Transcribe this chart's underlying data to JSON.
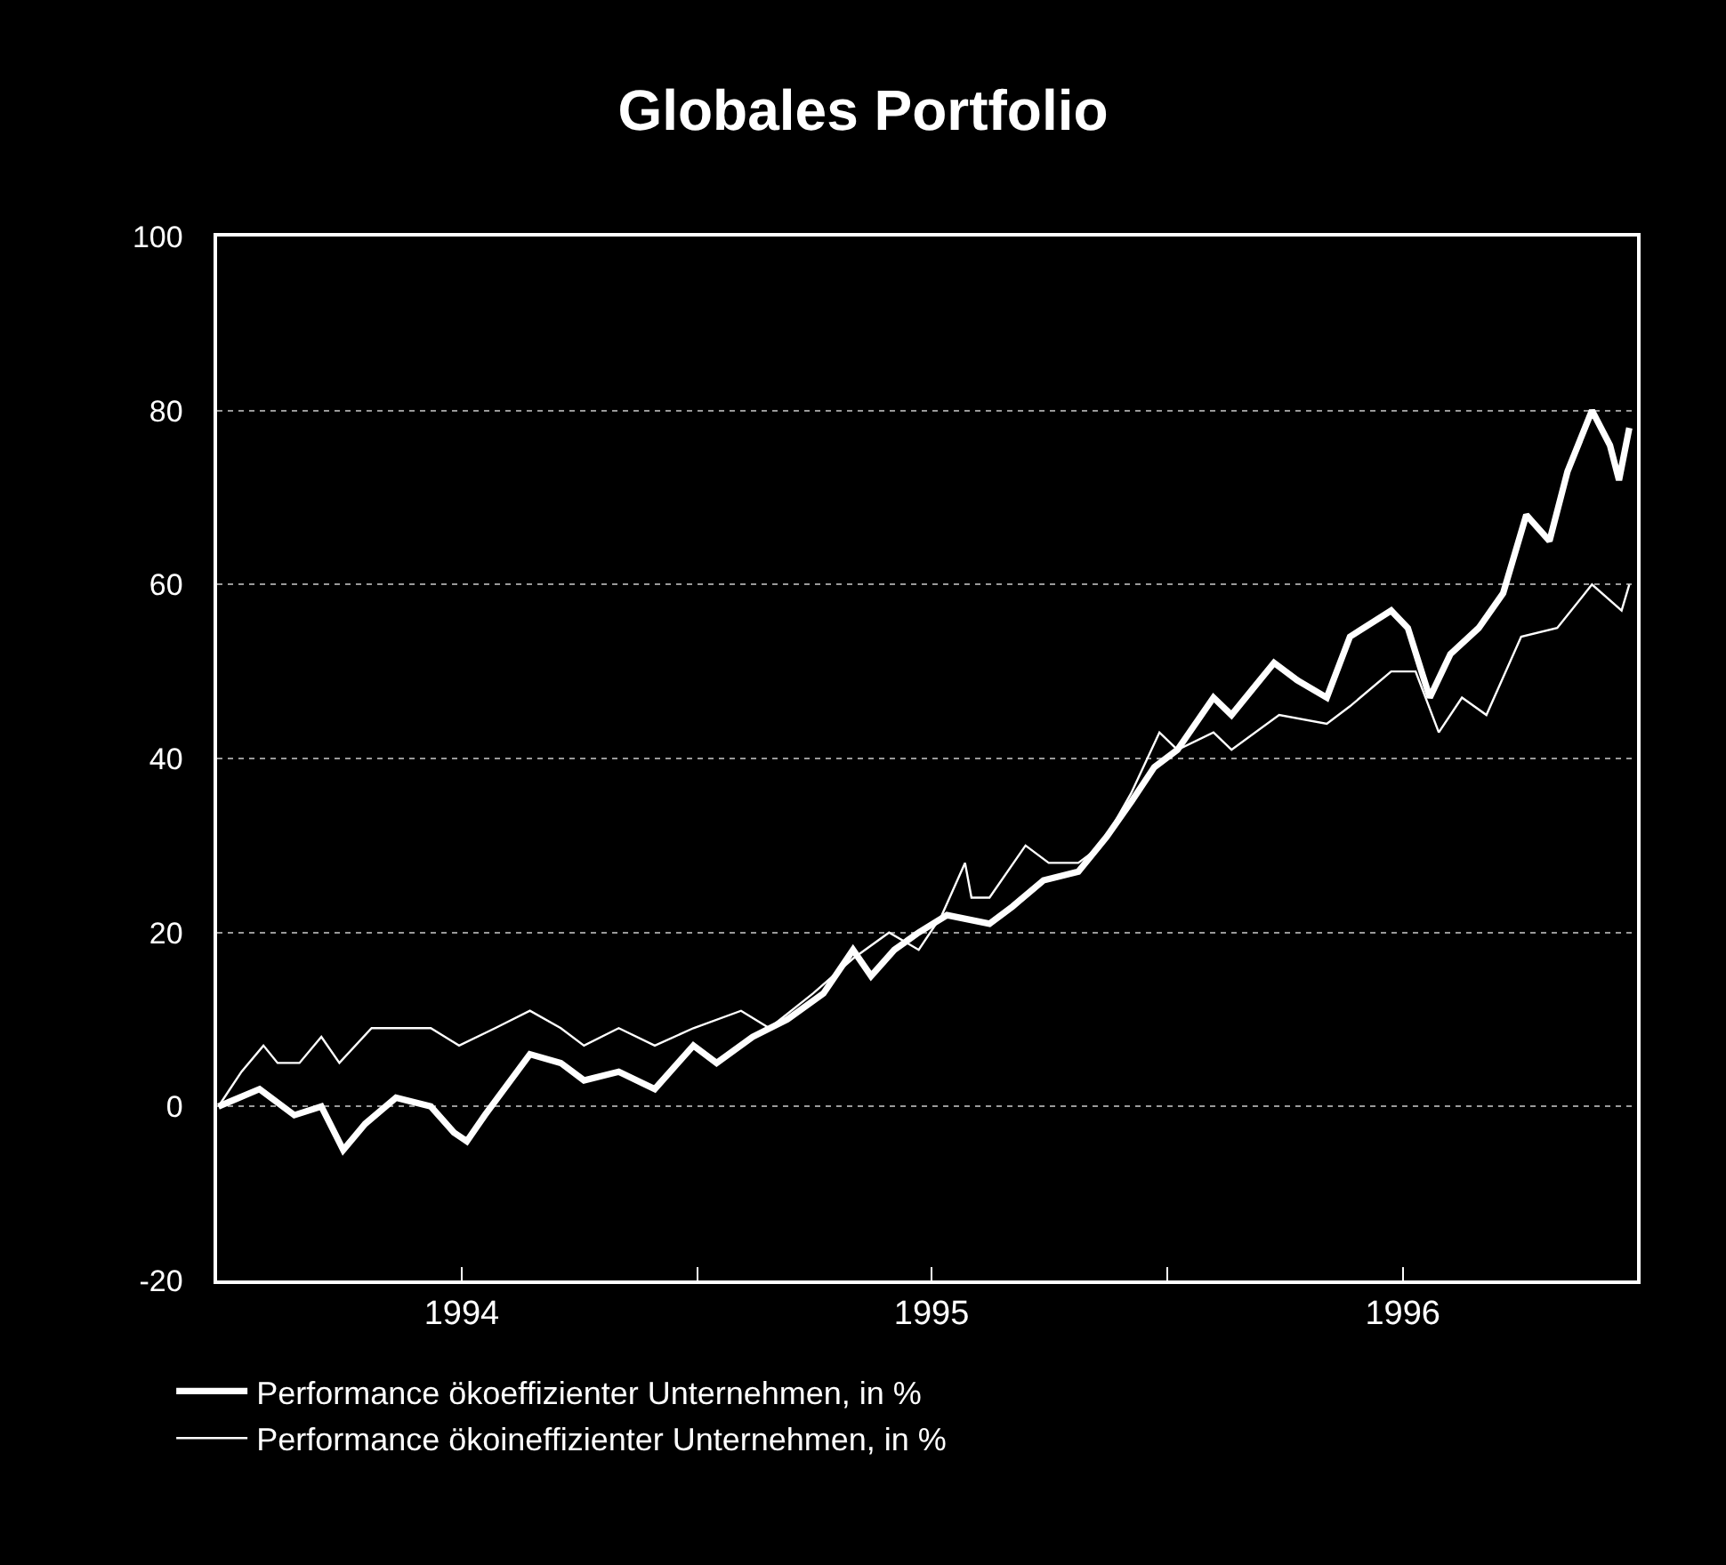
{
  "chart_data": {
    "type": "line",
    "title": "Globales Portfolio",
    "xlim": [
      "1993-12-24",
      "1996-12-31"
    ],
    "xticks": [
      {
        "value": "1994-07-02",
        "label": "1994"
      },
      {
        "value": "1995-01-01",
        "label": null
      },
      {
        "value": "1995-07-02",
        "label": "1995"
      },
      {
        "value": "1996-01-01",
        "label": null
      },
      {
        "value": "1996-07-02",
        "label": "1996"
      }
    ],
    "ylim": [
      -20,
      100
    ],
    "yticks": [
      -20,
      0,
      20,
      40,
      60,
      80,
      100
    ],
    "grid": "y",
    "legend": "bottom left",
    "line_style": "solid",
    "marker": "none",
    "series": [
      {
        "name": "Performance ökoeffizienter Unternehmen, in %",
        "color": "#ffffff",
        "x": [
          "1993-12-25",
          "1994-01-26",
          "1994-02-22",
          "1994-03-15",
          "1994-04-01",
          "1994-04-18",
          "1994-05-12",
          "1994-06-08",
          "1994-06-26",
          "1994-07-06",
          "1994-07-20",
          "1994-08-24",
          "1994-09-17",
          "1994-10-05",
          "1994-11-01",
          "1994-11-29",
          "1994-12-29",
          "1995-01-16",
          "1995-02-13",
          "1995-03-12",
          "1995-04-09",
          "1995-05-02",
          "1995-05-16",
          "1995-06-03",
          "1995-06-22",
          "1995-07-14",
          "1995-08-16",
          "1995-09-03",
          "1995-09-27",
          "1995-10-24",
          "1995-11-15",
          "1995-12-04",
          "1995-12-22",
          "1996-01-09",
          "1996-02-06",
          "1996-02-20",
          "1996-03-24",
          "1996-04-11",
          "1996-05-04",
          "1996-05-22",
          "1996-06-23",
          "1996-07-06",
          "1996-07-23",
          "1996-08-08",
          "1996-08-30",
          "1996-09-18",
          "1996-10-06",
          "1996-10-24",
          "1996-11-07",
          "1996-11-26",
          "1996-12-10",
          "1996-12-17",
          "1996-12-25"
        ],
        "values": [
          0,
          2,
          -1,
          0,
          -5,
          -2,
          1,
          0,
          -3,
          -4,
          -1,
          6,
          5,
          3,
          4,
          2,
          7,
          5,
          8,
          10,
          13,
          18,
          15,
          18,
          20,
          22,
          21,
          23,
          26,
          27,
          31,
          35,
          39,
          41,
          47,
          45,
          51,
          49,
          47,
          54,
          57,
          55,
          47,
          52,
          55,
          59,
          68,
          65,
          73,
          80,
          76,
          72,
          78
        ]
      },
      {
        "name": "Performance ökoineffizienter Unternehmen, in %",
        "color": "#ffffff",
        "x": [
          "1993-12-25",
          "1994-01-12",
          "1994-01-29",
          "1994-02-09",
          "1994-02-26",
          "1994-03-15",
          "1994-03-29",
          "1994-04-23",
          "1994-05-16",
          "1994-06-08",
          "1994-06-30",
          "1994-07-28",
          "1994-08-24",
          "1994-09-17",
          "1994-10-05",
          "1994-11-01",
          "1994-11-29",
          "1994-12-29",
          "1995-02-04",
          "1995-02-26",
          "1995-04-01",
          "1995-05-02",
          "1995-05-30",
          "1995-06-22",
          "1995-07-10",
          "1995-07-28",
          "1995-08-02",
          "1995-08-16",
          "1995-09-13",
          "1995-10-01",
          "1995-10-24",
          "1995-11-11",
          "1995-12-04",
          "1995-12-26",
          "1996-01-09",
          "1996-02-06",
          "1996-02-20",
          "1996-03-28",
          "1996-05-04",
          "1996-05-22",
          "1996-06-23",
          "1996-07-12",
          "1996-07-30",
          "1996-08-17",
          "1996-09-05",
          "1996-10-02",
          "1996-10-30",
          "1996-11-26",
          "1996-12-19",
          "1996-12-25"
        ],
        "values": [
          0,
          4,
          7,
          5,
          5,
          8,
          5,
          9,
          9,
          9,
          7,
          9,
          11,
          9,
          7,
          9,
          7,
          9,
          11,
          9,
          13,
          17,
          20,
          18,
          22,
          28,
          24,
          24,
          30,
          28,
          28,
          30,
          36,
          43,
          41,
          43,
          41,
          45,
          44,
          46,
          50,
          50,
          43,
          47,
          45,
          54,
          55,
          60,
          57,
          60
        ]
      }
    ]
  }
}
